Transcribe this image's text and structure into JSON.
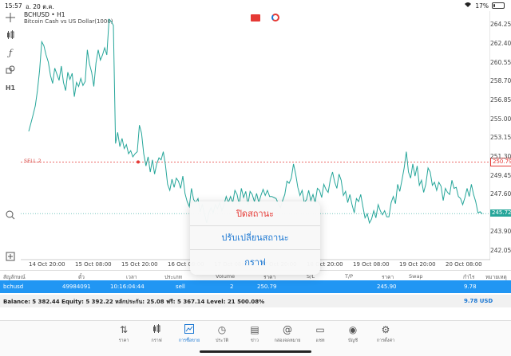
{
  "statusbar": {
    "time": "15:57",
    "date": "อ. 20 ต.ค.",
    "battery": "17%",
    "battery_level": 0.17
  },
  "symbol": {
    "title": "BCHUSD • H1",
    "subtitle": "Bitcoin Cash vs US Dollar(1000)"
  },
  "chart_data": {
    "type": "line",
    "color": "#26a69a",
    "ylim": [
      241.2,
      265.6
    ],
    "y_ticks": [
      "264.25",
      "262.40",
      "260.55",
      "258.70",
      "256.85",
      "255.00",
      "253.15",
      "251.30",
      "249.45",
      "247.60",
      "243.90",
      "242.05"
    ],
    "x_ticks": [
      "14 Oct 20:00",
      "15 Oct 08:00",
      "15 Oct 20:00",
      "16 Oct 08:00",
      "17 Oct 08:00",
      "17 Oct 20:00",
      "18 Oct 20:00",
      "19 Oct 08:00",
      "19 Oct 20:00",
      "20 Oct 08:00"
    ],
    "values": [
      253.8,
      254.6,
      255.4,
      256.3,
      257.8,
      259.8,
      262.6,
      262.2,
      261.3,
      260.6,
      259.3,
      258.5,
      260.0,
      259.4,
      258.8,
      260.2,
      258.6,
      257.8,
      259.6,
      258.9,
      259.5,
      257.2,
      258.6,
      258.2,
      259.0,
      258.3,
      258.7,
      261.8,
      260.4,
      259.6,
      258.2,
      260.5,
      261.8,
      260.8,
      261.3,
      262.0,
      261.3,
      264.8,
      264.6,
      264.2,
      252.6,
      253.7,
      252.3,
      253.1,
      252.1,
      252.5,
      251.6,
      251.9,
      251.3,
      251.6,
      251.8,
      254.4,
      253.6,
      251.6,
      250.4,
      251.3,
      249.8,
      251.0,
      249.6,
      250.6,
      251.2,
      251.0,
      251.8,
      250.5,
      248.6,
      248.0,
      249.1,
      248.3,
      249.2,
      248.9,
      248.2,
      249.4,
      247.7,
      246.9,
      246.4,
      248.2,
      247.1,
      246.8,
      247.2,
      245.9,
      246.6,
      245.7,
      244.8,
      245.8,
      246.3,
      245.8,
      246.6,
      246.2,
      246.8,
      246.0,
      246.6,
      247.4,
      246.8,
      247.4,
      246.8,
      248.0,
      247.6,
      246.6,
      248.2,
      247.3,
      247.9,
      246.6,
      247.9,
      247.6,
      246.9,
      247.7,
      246.8,
      247.5,
      248.1,
      247.5,
      248.0,
      247.4,
      247.4,
      247.3,
      247.2,
      246.7,
      246.3,
      247.0,
      247.6,
      248.9,
      248.7,
      249.2,
      250.6,
      249.6,
      248.3,
      247.5,
      248.0,
      246.8,
      247.1,
      248.0,
      247.0,
      247.6,
      246.8,
      248.2,
      248.0,
      247.3,
      248.6,
      248.1,
      247.8,
      249.1,
      249.8,
      248.8,
      248.2,
      249.6,
      249.0,
      247.5,
      247.9,
      246.8,
      247.6,
      246.6,
      245.8,
      247.2,
      246.9,
      247.6,
      246.4,
      245.3,
      245.7,
      244.8,
      245.2,
      246.0,
      245.3,
      246.6,
      246.0,
      245.6,
      246.0,
      245.4,
      245.4,
      246.8,
      247.4,
      246.7,
      248.6,
      247.9,
      249.0,
      250.2,
      251.8,
      249.8,
      249.2,
      250.6,
      249.4,
      250.4,
      248.5,
      249.0,
      247.8,
      248.6,
      250.2,
      249.8,
      248.5,
      248.8,
      248.0,
      248.8,
      248.4,
      247.0,
      248.2,
      247.8,
      247.6,
      249.0,
      248.2,
      248.3,
      247.4,
      247.2,
      246.6,
      247.3,
      248.2,
      247.4,
      248.6,
      247.6,
      246.9,
      245.8,
      245.9,
      245.7
    ],
    "levels": {
      "sell_label": "SELL 2",
      "sell_price": "250.79",
      "sell_value": 250.79,
      "bid_price": "245.72",
      "bid_value": 245.72,
      "sell_color": "#e53935",
      "bid_color": "#26a69a"
    }
  },
  "context_menu": {
    "items": [
      "ปิดสถานะ",
      "ปรับเปลี่ยนสถานะ",
      "กราฟ"
    ]
  },
  "table": {
    "headers": [
      "สัญลักษณ์",
      "ตั๋ว",
      "เวลา",
      "ประเภท",
      "Volume",
      "ราคา",
      "S/L",
      "T/P",
      "ราคา",
      "Swap",
      "กำไร",
      "หมายเหตุ"
    ],
    "row": {
      "symbol": "bchusd",
      "ticket": "49984091",
      "time": "10:16:04:44",
      "type": "sell",
      "volume": "2",
      "open_price": "250.79",
      "price": "245.90",
      "profit": "9.78"
    }
  },
  "balance": {
    "text": "Balance: 5 382.44 Equity: 5 392.22 หลักประกัน: 25.08 ฟรี: 5 367.14 Level: 21 500.08%",
    "profit": "9.78  USD"
  },
  "tabs": [
    {
      "label": "ราคา",
      "icon": "quotes-icon"
    },
    {
      "label": "กราฟ",
      "icon": "chart-icon"
    },
    {
      "label": "การซื้อขาย",
      "icon": "trade-icon",
      "active": true
    },
    {
      "label": "ประวัติ",
      "icon": "history-icon"
    },
    {
      "label": "ข่าว",
      "icon": "news-icon"
    },
    {
      "label": "กล่องจดหมาย",
      "icon": "mailbox-icon"
    },
    {
      "label": "แชท",
      "icon": "chat-icon"
    },
    {
      "label": "บัญชี",
      "icon": "account-icon"
    },
    {
      "label": "การตั้งค่า",
      "icon": "settings-icon"
    }
  ]
}
